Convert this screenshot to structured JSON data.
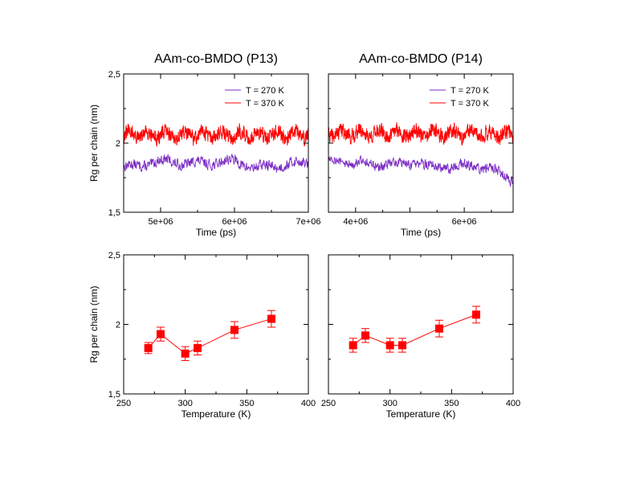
{
  "colors": {
    "series_270K": "#7a2bc4",
    "series_370K": "#ff0000",
    "scatter": "#ff0000",
    "frame": "#000000"
  },
  "chart_data": [
    {
      "id": "ts_p13",
      "type": "line",
      "title": "AAm-co-BMDO (P13)",
      "xlabel": "Time (ps)",
      "ylabel": "Rg per chain (nm)",
      "xlim": [
        4500000,
        7000000
      ],
      "ylim": [
        1.5,
        2.5
      ],
      "xticks": [
        5000000,
        6000000,
        7000000
      ],
      "xtick_labels": [
        "5e+06",
        "6e+06",
        "7e+06"
      ],
      "yticks": [
        1.5,
        2,
        2.5
      ],
      "ytick_labels": [
        "1,5",
        "2",
        "2,5"
      ],
      "legend_position": "top-right",
      "series": [
        {
          "name": "T = 270 K",
          "color": "#7a2bc4",
          "baseline": [
            [
              4500000,
              1.82
            ],
            [
              4800000,
              1.85
            ],
            [
              5100000,
              1.87
            ],
            [
              5400000,
              1.85
            ],
            [
              5700000,
              1.86
            ],
            [
              6000000,
              1.87
            ],
            [
              6300000,
              1.82
            ],
            [
              6600000,
              1.84
            ],
            [
              7000000,
              1.86
            ]
          ],
          "noise_amplitude": 0.05,
          "points": 500,
          "seed": 13
        },
        {
          "name": "T = 370 K",
          "color": "#ff0000",
          "baseline": [
            [
              4500000,
              2.06
            ],
            [
              5750000,
              2.06
            ],
            [
              7000000,
              2.06
            ]
          ],
          "noise_amplitude": 0.07,
          "points": 900,
          "seed": 31
        }
      ]
    },
    {
      "id": "ts_p14",
      "type": "line",
      "title": "AAm-co-BMDO (P14)",
      "xlabel": "Time (ps)",
      "ylabel": "",
      "xlim": [
        3500000,
        6900000
      ],
      "ylim": [
        1.5,
        2.5
      ],
      "xticks": [
        4000000,
        5000000,
        6000000
      ],
      "xtick_labels": [
        "4e+06",
        "",
        "6e+06"
      ],
      "yticks": [
        1.5,
        2,
        2.5
      ],
      "ytick_labels": [
        "",
        "",
        ""
      ],
      "legend_position": "top-right",
      "series": [
        {
          "name": "T = 270 K",
          "color": "#7a2bc4",
          "baseline": [
            [
              3500000,
              1.88
            ],
            [
              4000000,
              1.86
            ],
            [
              4500000,
              1.84
            ],
            [
              5000000,
              1.86
            ],
            [
              5500000,
              1.82
            ],
            [
              6000000,
              1.84
            ],
            [
              6400000,
              1.82
            ],
            [
              6900000,
              1.74
            ]
          ],
          "noise_amplitude": 0.05,
          "points": 500,
          "seed": 14
        },
        {
          "name": "T = 370 K",
          "color": "#ff0000",
          "baseline": [
            [
              3500000,
              2.07
            ],
            [
              5200000,
              2.07
            ],
            [
              6900000,
              2.06
            ]
          ],
          "noise_amplitude": 0.07,
          "points": 900,
          "seed": 41
        }
      ]
    },
    {
      "id": "temp_p13",
      "type": "scatter",
      "title": "",
      "xlabel": "Temperature (K)",
      "ylabel": "Rg per chain (nm)",
      "xlim": [
        250,
        400
      ],
      "ylim": [
        1.5,
        2.5
      ],
      "xticks": [
        250,
        300,
        350,
        400
      ],
      "xtick_labels": [
        "250",
        "300",
        "350",
        "400"
      ],
      "yticks": [
        1.5,
        2,
        2.5
      ],
      "ytick_labels": [
        "1,5",
        "2",
        "2,5"
      ],
      "series": [
        {
          "color": "#ff0000",
          "x": [
            270,
            280,
            300,
            310,
            340,
            370
          ],
          "y": [
            1.83,
            1.93,
            1.79,
            1.83,
            1.96,
            2.04
          ],
          "err": [
            0.04,
            0.05,
            0.05,
            0.05,
            0.06,
            0.06
          ]
        }
      ]
    },
    {
      "id": "temp_p14",
      "type": "scatter",
      "title": "",
      "xlabel": "Temperature (K)",
      "ylabel": "",
      "xlim": [
        250,
        400
      ],
      "ylim": [
        1.5,
        2.5
      ],
      "xticks": [
        250,
        300,
        350,
        400
      ],
      "xtick_labels": [
        "250",
        "300",
        "350",
        "400"
      ],
      "yticks": [
        1.5,
        2,
        2.5
      ],
      "ytick_labels": [
        "",
        "",
        ""
      ],
      "series": [
        {
          "color": "#ff0000",
          "x": [
            270,
            280,
            300,
            310,
            340,
            370
          ],
          "y": [
            1.85,
            1.92,
            1.85,
            1.85,
            1.97,
            2.07
          ],
          "err": [
            0.05,
            0.05,
            0.05,
            0.05,
            0.06,
            0.06
          ]
        }
      ]
    }
  ]
}
